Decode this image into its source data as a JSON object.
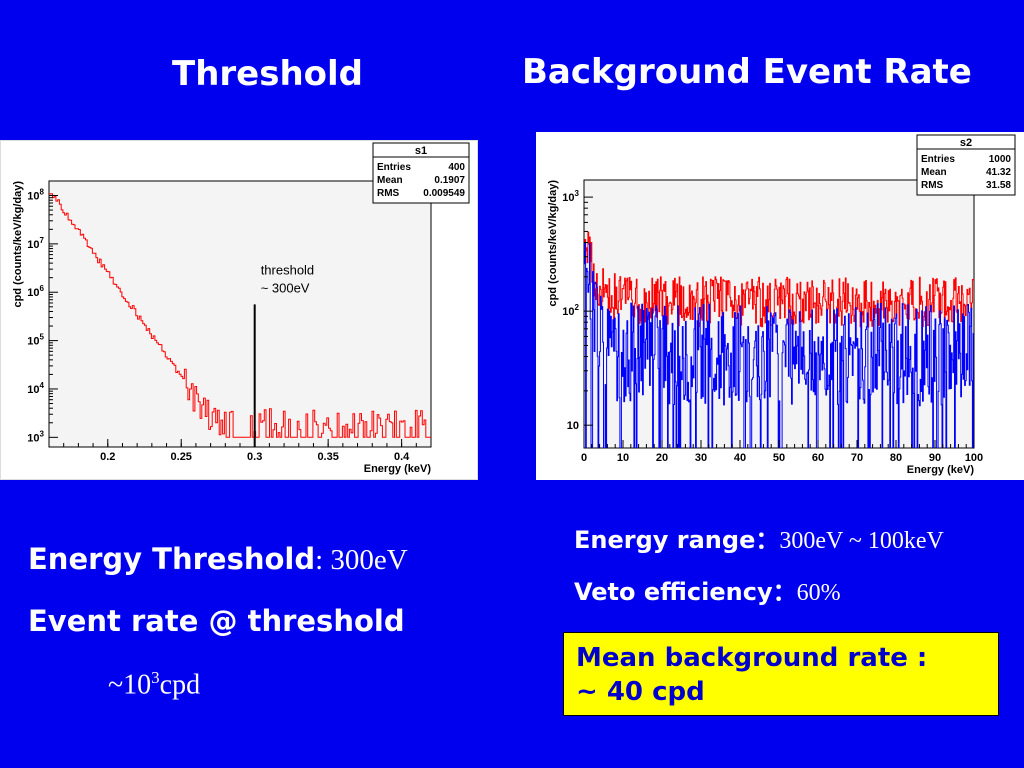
{
  "slide": {
    "title_left": "Threshold",
    "title_right": "Background Event Rate",
    "left_line1_label": "Energy Threshold",
    "left_line1_value": ": 300eV",
    "left_line2": "Event rate @ threshold",
    "left_line3_prefix": "~10",
    "left_line3_sup": "3",
    "left_line3_suffix": "cpd",
    "right_line1_label": "Energy range",
    "right_line1_sep": "：",
    "right_line1_value": "300eV ~ 100keV",
    "right_line2_label": "Veto efficiency",
    "right_line2_sep": "：",
    "right_line2_value": "60%",
    "highlight_line1": "Mean background rate :",
    "highlight_line2": "~ 40 cpd"
  },
  "colors": {
    "background": "#0000ee",
    "highlight": "#ffff00",
    "highlight_text": "#0000cc",
    "red_series": "#ff0000",
    "blue_series": "#0000ff"
  },
  "chart_data": [
    {
      "type": "line",
      "xlabel": "Energy (keV)",
      "ylabel": "cpd (counts/keV/kg/day)",
      "xlim": [
        0.16,
        0.42
      ],
      "ylim_log10": [
        2.8,
        8.3
      ],
      "y_scale": "log",
      "x_ticks": [
        "0.2",
        "0.25",
        "0.3",
        "0.35",
        "0.4"
      ],
      "x_tick_values": [
        0.2,
        0.25,
        0.3,
        0.35,
        0.4
      ],
      "y_ticks": [
        {
          "base": "10",
          "exp": "3",
          "log": 3
        },
        {
          "base": "10",
          "exp": "4",
          "log": 4
        },
        {
          "base": "10",
          "exp": "5",
          "log": 5
        },
        {
          "base": "10",
          "exp": "6",
          "log": 6
        },
        {
          "base": "10",
          "exp": "7",
          "log": 7
        },
        {
          "base": "10",
          "exp": "8",
          "log": 8
        }
      ],
      "stats": {
        "title": "s1",
        "rows": [
          [
            "Entries",
            "400"
          ],
          [
            "Mean",
            "0.1907"
          ],
          [
            "RMS",
            "0.009549"
          ]
        ]
      },
      "annotation": {
        "line1": "threshold",
        "line2": "~ 300eV",
        "x": 0.3,
        "top_log10": 5.75
      },
      "series": [
        {
          "color": "#ff0000",
          "x_start": 0.16,
          "x_end": 0.42,
          "log10_start": 8.1,
          "slope_per_keV": -43,
          "floor_log10": 3.0,
          "noise": 0.35
        }
      ]
    },
    {
      "type": "line",
      "xlabel": "Energy (keV)",
      "ylabel": "cpd (counts/keV/kg/day)",
      "xlim": [
        0,
        100
      ],
      "ylim_log10": [
        0.8,
        3.15
      ],
      "y_scale": "log",
      "x_ticks": [
        "0",
        "10",
        "20",
        "30",
        "40",
        "50",
        "60",
        "70",
        "80",
        "90",
        "100"
      ],
      "x_tick_values": [
        0,
        10,
        20,
        30,
        40,
        50,
        60,
        70,
        80,
        90,
        100
      ],
      "y_ticks": [
        {
          "base": "10",
          "exp": "",
          "log": 1
        },
        {
          "base": "10",
          "exp": "2",
          "log": 2
        },
        {
          "base": "10",
          "exp": "3",
          "log": 3
        }
      ],
      "stats": {
        "title": "s2",
        "rows": [
          [
            "Entries",
            "1000"
          ],
          [
            "Mean",
            "41.32"
          ],
          [
            "RMS",
            "31.58"
          ]
        ]
      },
      "series": [
        {
          "color": "#ff0000",
          "level_log10": 2.08,
          "start_log10": 2.75,
          "noise": 0.22
        },
        {
          "color": "#0000ff",
          "level_log10": 1.62,
          "start_log10": 2.85,
          "noise": 0.45
        }
      ]
    }
  ]
}
